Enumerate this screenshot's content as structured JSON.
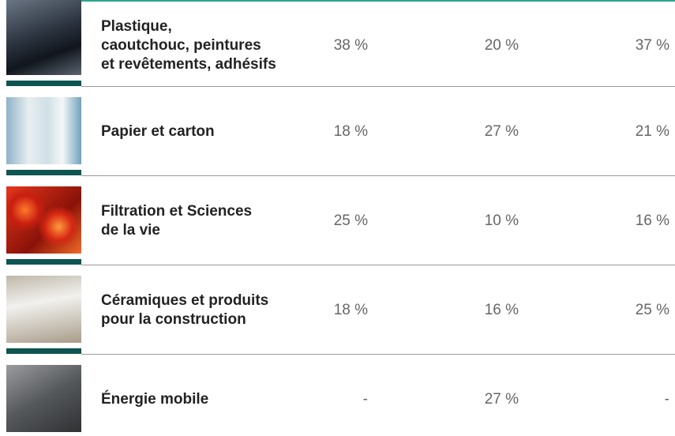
{
  "table": {
    "rows": [
      {
        "label": [
          "Plastique,",
          "caoutchouc, peintures",
          "et revêtements, adhésifs"
        ],
        "values": [
          "38 %",
          "20 %",
          "37 %"
        ]
      },
      {
        "label": [
          "Papier et carton"
        ],
        "values": [
          "18 %",
          "27 %",
          "21 %"
        ]
      },
      {
        "label": [
          "Filtration et Sciences",
          "de la vie"
        ],
        "values": [
          "25 %",
          "10 %",
          "16 %"
        ]
      },
      {
        "label": [
          "Céramiques et produits",
          "pour la construction"
        ],
        "values": [
          "18 %",
          "16 %",
          "25 %"
        ]
      },
      {
        "label": [
          "Énergie mobile"
        ],
        "values": [
          "-",
          "27 %",
          "-"
        ]
      }
    ]
  }
}
